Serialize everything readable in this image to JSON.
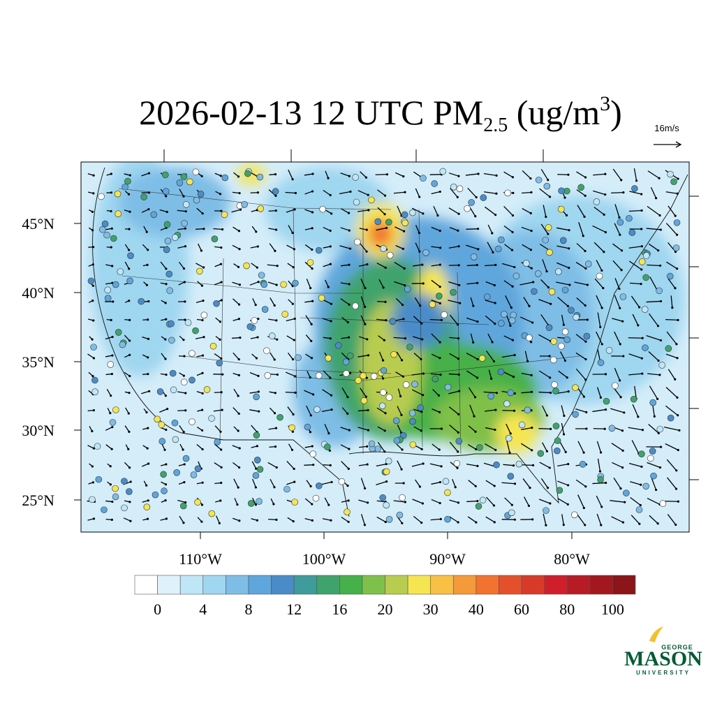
{
  "title": {
    "main": "2026-02-13 12 UTC PM",
    "subscript": "2.5",
    "unit_open": " (ug/m",
    "superscript": "3",
    "unit_close": ")"
  },
  "vector_reference": "16m/s",
  "lat_labels": [
    "45°N",
    "40°N",
    "35°N",
    "30°N",
    "25°N"
  ],
  "lon_labels": [
    "110°W",
    "100°W",
    "90°W",
    "80°W"
  ],
  "colorbar": {
    "colors": [
      "#ffffff",
      "#dff2fb",
      "#bfe6f7",
      "#9fd6f0",
      "#7ebde6",
      "#5ea6dc",
      "#4a8cc8",
      "#3f9c9a",
      "#3fa36c",
      "#46b04a",
      "#7fc04a",
      "#b8cc50",
      "#f5e551",
      "#f8c045",
      "#f59a3a",
      "#f2722f",
      "#e5502c",
      "#d83a2a",
      "#cf1f2b",
      "#b71c26",
      "#a3181f",
      "#8b1519"
    ],
    "labels": [
      0,
      4,
      8,
      12,
      16,
      20,
      30,
      40,
      60,
      80,
      100
    ]
  },
  "logo": {
    "line1": "GEORGE",
    "line2": "MASON",
    "line3": "UNIVERSITY"
  }
}
